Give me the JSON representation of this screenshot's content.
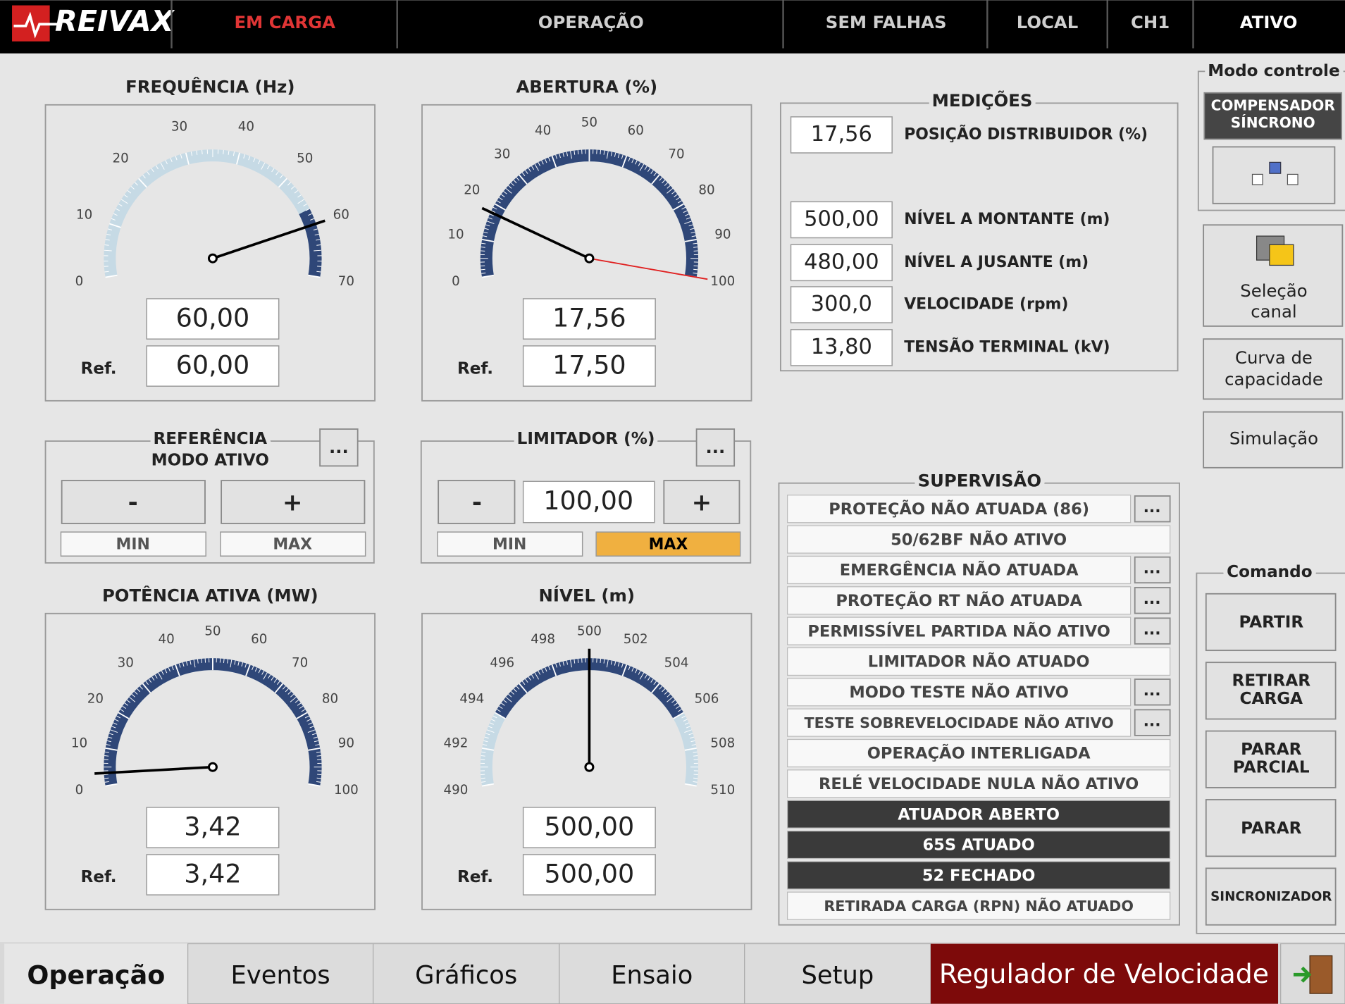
{
  "topbar": {
    "logo": "REIVAX",
    "items": [
      "EM CARGA",
      "OPERAÇÃO",
      "SEM FALHAS",
      "LOCAL",
      "CH1",
      "ATIVO"
    ]
  },
  "gauges": [
    {
      "title": "FREQUÊNCIA (Hz)",
      "ticks": [
        0,
        10,
        20,
        30,
        40,
        50,
        60,
        70
      ],
      "band": [
        57,
        70
      ],
      "needle": 60,
      "value": "60,00",
      "ref_label": "Ref.",
      "ref": "60,00"
    },
    {
      "title": "ABERTURA (%)",
      "ticks": [
        0,
        10,
        20,
        30,
        40,
        50,
        60,
        70,
        80,
        90,
        100
      ],
      "band": [
        0,
        100
      ],
      "needle": 17.56,
      "limit": 100,
      "value": "17,56",
      "ref_label": "Ref.",
      "ref": "17,50"
    },
    {
      "title": "POTÊNCIA ATIVA (MW)",
      "ticks": [
        0,
        10,
        20,
        30,
        40,
        50,
        60,
        70,
        80,
        90,
        100
      ],
      "band": [
        0,
        100
      ],
      "needle": 3.42,
      "value": "3,42",
      "ref_label": "Ref.",
      "ref": "3,42"
    },
    {
      "title": "NÍVEL (m)",
      "ticks": [
        490,
        492,
        494,
        496,
        498,
        500,
        502,
        504,
        506,
        508,
        510
      ],
      "band": [
        494,
        506
      ],
      "needle": 500,
      "value": "500,00",
      "ref_label": "Ref.",
      "ref": "500,00"
    }
  ],
  "referencia": {
    "title_lines": [
      "REFERÊNCIA",
      "MODO ATIVO"
    ],
    "more": "...",
    "minus": "-",
    "plus": "+",
    "min": "MIN",
    "max": "MAX"
  },
  "limitador": {
    "title": "LIMITADOR (%)",
    "more": "...",
    "minus": "-",
    "value": "100,00",
    "plus": "+",
    "min": "MIN",
    "max": "MAX",
    "active": "max"
  },
  "medicoes": {
    "title": "MEDIÇÕES",
    "rows": [
      {
        "value": "17,56",
        "label": "POSIÇÃO DISTRIBUIDOR (%)"
      },
      {
        "value": "500,00",
        "label": "NÍVEL A MONTANTE (m)"
      },
      {
        "value": "480,00",
        "label": "NÍVEL A JUSANTE (m)"
      },
      {
        "value": "300,0",
        "label": "VELOCIDADE (rpm)"
      },
      {
        "value": "13,80",
        "label": "TENSÃO TERMINAL (kV)"
      }
    ]
  },
  "supervisao": {
    "title": "SUPERVISÃO",
    "rows": [
      {
        "label": "PROTEÇÃO NÃO ATUADA (86)",
        "more": "..."
      },
      {
        "label": "50/62BF NÃO ATIVO"
      },
      {
        "label": "EMERGÊNCIA NÃO ATUADA",
        "more": "..."
      },
      {
        "label": "PROTEÇÃO RT NÃO ATUADA",
        "more": "..."
      },
      {
        "label": "PERMISSÍVEL PARTIDA NÃO ATIVO",
        "more": "..."
      },
      {
        "label": "LIMITADOR NÃO ATUADO"
      },
      {
        "label": "MODO TESTE NÃO ATIVO",
        "more": "..."
      },
      {
        "label": "TESTE SOBREVELOCIDADE NÃO ATIVO",
        "more": "..."
      },
      {
        "label": "OPERAÇÃO INTERLIGADA"
      },
      {
        "label": "RELÉ VELOCIDADE NULA NÃO ATIVO"
      },
      {
        "label": "ATUADOR ABERTO",
        "dark": true
      },
      {
        "label": "65S ATUADO",
        "dark": true
      },
      {
        "label": "52 FECHADO",
        "dark": true
      },
      {
        "label": "RETIRADA CARGA (RPN) NÃO ATUADO"
      }
    ]
  },
  "modo_controle": {
    "title": "Modo controle",
    "button_lines": [
      "COMPENSADOR",
      "SÍNCRONO"
    ]
  },
  "side_buttons": [
    [
      "Seleção",
      "canal"
    ],
    [
      "Curva de",
      "capacidade"
    ],
    [
      "Simulação"
    ]
  ],
  "comando": {
    "title": "Comando",
    "buttons": [
      [
        "PARTIR"
      ],
      [
        "RETIRAR",
        "CARGA"
      ],
      [
        "PARAR",
        "PARCIAL"
      ],
      [
        "PARAR"
      ],
      [
        "SINCRONIZADOR"
      ]
    ]
  },
  "tabs": [
    "Operação",
    "Eventos",
    "Gráficos",
    "Ensaio",
    "Setup"
  ],
  "module": "Regulador de Velocidade"
}
